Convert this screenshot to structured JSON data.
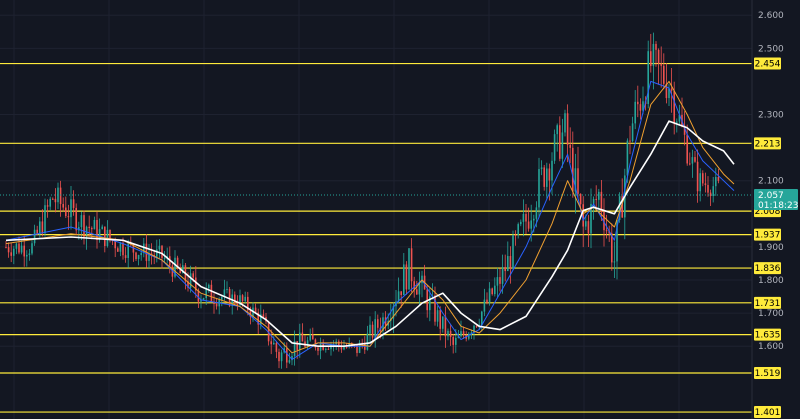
{
  "colors": {
    "background": "#131722",
    "grid": "#1e2230",
    "up": "#26a69a",
    "down": "#ef5350",
    "level_line": "#ffeb3b",
    "level_badge": "#ffeb3b",
    "ma_slow": "#ffffff",
    "ma_mid": "#f0a030",
    "ma_fast": "#2962ff",
    "price_badge": "#26a69a"
  },
  "chart_data": {
    "type": "candlestick",
    "ylim": [
      1.38,
      2.64
    ],
    "grid": true,
    "y_ticks": [
      {
        "label": "2.600",
        "value": 2.6
      },
      {
        "label": "2.500",
        "value": 2.5
      },
      {
        "label": "2.300",
        "value": 2.3
      },
      {
        "label": "2.100",
        "value": 2.1
      },
      {
        "label": "1.900",
        "value": 1.9
      },
      {
        "label": "1.800",
        "value": 1.8
      },
      {
        "label": "1.700",
        "value": 1.7
      },
      {
        "label": "1.600",
        "value": 1.6
      }
    ],
    "levels": [
      {
        "label": "2.454",
        "value": 2.454
      },
      {
        "label": "2.213",
        "value": 2.213
      },
      {
        "label": "2.008",
        "value": 2.008
      },
      {
        "label": "1.937",
        "value": 1.937
      },
      {
        "label": "1.836",
        "value": 1.836
      },
      {
        "label": "1.731",
        "value": 1.731
      },
      {
        "label": "1.635",
        "value": 1.635
      },
      {
        "label": "1.519",
        "value": 1.519
      },
      {
        "label": "1.401",
        "value": 1.401
      }
    ],
    "last_price": {
      "value": 2.057,
      "label": "2.057",
      "countdown": "01:18:23"
    },
    "anchors": [
      [
        0,
        1.9,
        1.85,
        1.95,
        0.04
      ],
      [
        10,
        1.9,
        1.85,
        1.95,
        0.04
      ],
      [
        18,
        2.05,
        1.9,
        2.15,
        0.06
      ],
      [
        30,
        1.97,
        1.9,
        2.03,
        0.05
      ],
      [
        45,
        1.9,
        1.85,
        1.95,
        0.04
      ],
      [
        60,
        1.87,
        1.82,
        1.93,
        0.04
      ],
      [
        75,
        1.76,
        1.65,
        1.83,
        0.05
      ],
      [
        90,
        1.74,
        1.7,
        1.77,
        0.03
      ],
      [
        98,
        1.68,
        1.6,
        1.73,
        0.04
      ],
      [
        105,
        1.57,
        1.48,
        1.63,
        0.05
      ],
      [
        112,
        1.61,
        1.56,
        1.65,
        0.04
      ],
      [
        125,
        1.61,
        1.56,
        1.65,
        0.03
      ],
      [
        135,
        1.59,
        1.55,
        1.63,
        0.03
      ],
      [
        145,
        1.68,
        1.6,
        1.75,
        0.05
      ],
      [
        155,
        1.84,
        1.72,
        1.95,
        0.07
      ],
      [
        165,
        1.7,
        1.62,
        1.8,
        0.05
      ],
      [
        172,
        1.6,
        1.55,
        1.65,
        0.04
      ],
      [
        182,
        1.69,
        1.63,
        1.74,
        0.04
      ],
      [
        190,
        1.8,
        1.7,
        1.85,
        0.05
      ],
      [
        200,
        1.98,
        1.85,
        2.08,
        0.07
      ],
      [
        208,
        2.15,
        2.05,
        2.25,
        0.08
      ],
      [
        215,
        2.25,
        2.15,
        2.35,
        0.08
      ],
      [
        222,
        1.95,
        1.8,
        2.1,
        0.09
      ],
      [
        228,
        2.06,
        1.95,
        2.12,
        0.06
      ],
      [
        234,
        1.86,
        1.75,
        1.98,
        0.08
      ],
      [
        240,
        2.25,
        2.05,
        2.4,
        0.09
      ],
      [
        248,
        2.45,
        2.35,
        2.55,
        0.09
      ],
      [
        255,
        2.4,
        2.3,
        2.55,
        0.09
      ],
      [
        260,
        2.25,
        2.1,
        2.3,
        0.07
      ],
      [
        266,
        2.1,
        2.05,
        2.15,
        0.05
      ],
      [
        274,
        2.08,
        2.02,
        2.12,
        0.04
      ]
    ],
    "ma_slow": [
      [
        0,
        1.92
      ],
      [
        25,
        1.93
      ],
      [
        45,
        1.92
      ],
      [
        60,
        1.88
      ],
      [
        75,
        1.78
      ],
      [
        90,
        1.73
      ],
      [
        100,
        1.68
      ],
      [
        110,
        1.61
      ],
      [
        120,
        1.6
      ],
      [
        130,
        1.6
      ],
      [
        140,
        1.61
      ],
      [
        150,
        1.66
      ],
      [
        160,
        1.73
      ],
      [
        168,
        1.76
      ],
      [
        175,
        1.7
      ],
      [
        182,
        1.66
      ],
      [
        190,
        1.65
      ],
      [
        200,
        1.69
      ],
      [
        210,
        1.81
      ],
      [
        216,
        1.89
      ],
      [
        222,
        2.01
      ],
      [
        226,
        2.02
      ],
      [
        234,
        2.0
      ],
      [
        240,
        2.08
      ],
      [
        248,
        2.18
      ],
      [
        255,
        2.28
      ],
      [
        262,
        2.26
      ],
      [
        268,
        2.22
      ],
      [
        276,
        2.19
      ],
      [
        280,
        2.15
      ]
    ],
    "ma_mid": [
      [
        0,
        1.91
      ],
      [
        25,
        1.94
      ],
      [
        45,
        1.92
      ],
      [
        60,
        1.86
      ],
      [
        75,
        1.76
      ],
      [
        90,
        1.72
      ],
      [
        100,
        1.66
      ],
      [
        110,
        1.58
      ],
      [
        120,
        1.61
      ],
      [
        130,
        1.61
      ],
      [
        140,
        1.6
      ],
      [
        150,
        1.7
      ],
      [
        160,
        1.8
      ],
      [
        168,
        1.74
      ],
      [
        175,
        1.66
      ],
      [
        182,
        1.64
      ],
      [
        190,
        1.7
      ],
      [
        200,
        1.8
      ],
      [
        210,
        1.97
      ],
      [
        216,
        2.1
      ],
      [
        222,
        2.0
      ],
      [
        226,
        2.02
      ],
      [
        234,
        1.96
      ],
      [
        240,
        2.1
      ],
      [
        248,
        2.33
      ],
      [
        255,
        2.4
      ],
      [
        262,
        2.3
      ],
      [
        268,
        2.2
      ],
      [
        276,
        2.12
      ],
      [
        280,
        2.09
      ]
    ],
    "ma_fast": [
      [
        0,
        1.92
      ],
      [
        25,
        1.96
      ],
      [
        45,
        1.91
      ],
      [
        60,
        1.86
      ],
      [
        75,
        1.74
      ],
      [
        90,
        1.72
      ],
      [
        100,
        1.65
      ],
      [
        110,
        1.56
      ],
      [
        120,
        1.61
      ],
      [
        130,
        1.6
      ],
      [
        140,
        1.6
      ],
      [
        150,
        1.73
      ],
      [
        160,
        1.8
      ],
      [
        168,
        1.7
      ],
      [
        175,
        1.62
      ],
      [
        182,
        1.65
      ],
      [
        190,
        1.76
      ],
      [
        200,
        1.9
      ],
      [
        210,
        2.08
      ],
      [
        216,
        2.18
      ],
      [
        222,
        1.98
      ],
      [
        226,
        2.03
      ],
      [
        234,
        1.92
      ],
      [
        240,
        2.15
      ],
      [
        248,
        2.4
      ],
      [
        255,
        2.38
      ],
      [
        262,
        2.24
      ],
      [
        268,
        2.16
      ],
      [
        276,
        2.1
      ],
      [
        280,
        2.07
      ]
    ]
  }
}
